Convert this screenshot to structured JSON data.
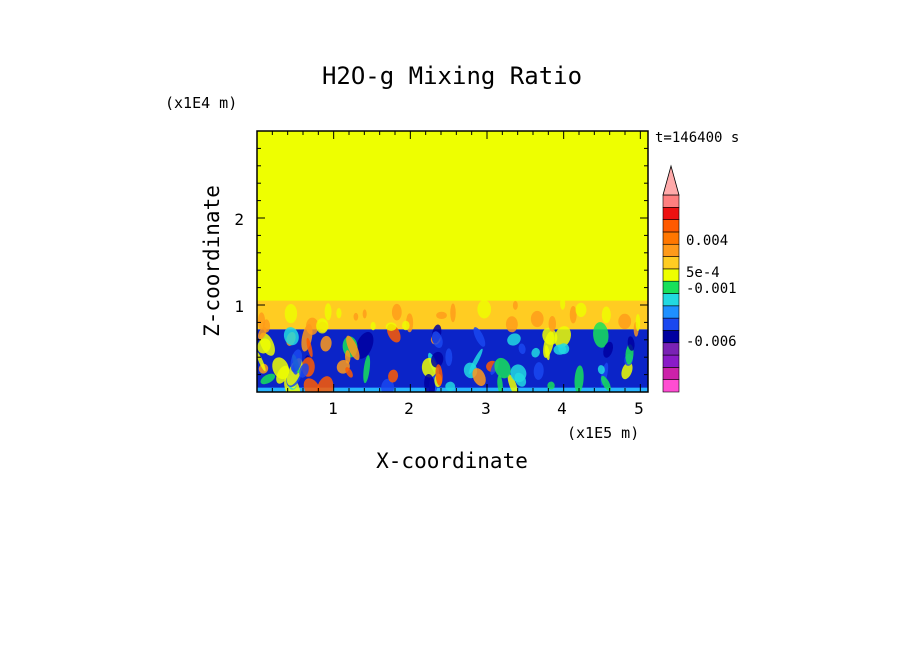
{
  "chart_data": {
    "type": "heatmap",
    "title": "H2O-g Mixing Ratio",
    "time_label": "t=146400 s",
    "xlabel": "X-coordinate",
    "ylabel": "Z-coordinate",
    "x_unit": "(x1E5 m)",
    "y_unit": "(x1E4 m)",
    "x_ticks": [
      "1",
      "2",
      "3",
      "4",
      "5"
    ],
    "y_ticks": [
      "1",
      "2"
    ],
    "x_range": [
      0,
      5.1
    ],
    "y_range": [
      0,
      3.0
    ],
    "field_layers": [
      {
        "z_from": 1.0,
        "z_to": 3.0,
        "color": "#eeff00"
      },
      {
        "z_from": 0.72,
        "z_to": 1.05,
        "color": "#ffcc22"
      },
      {
        "z_from": 0.0,
        "z_to": 0.72,
        "color": "#0b24c8"
      },
      {
        "z_from": 0.0,
        "z_to": 0.05,
        "color": "#27b3ff"
      }
    ],
    "colorbar": {
      "levels": [
        {
          "color": "#ff4dd2"
        },
        {
          "color": "#cc22aa"
        },
        {
          "color": "#8a1bc8"
        },
        {
          "color": "#7a22b5"
        },
        {
          "color": "#0000a0"
        },
        {
          "color": "#1a48f0"
        },
        {
          "color": "#1e90ff"
        },
        {
          "color": "#22d9e0"
        },
        {
          "color": "#18e05a"
        },
        {
          "color": "#eeff00"
        },
        {
          "color": "#ffcc22"
        },
        {
          "color": "#ff9a1a"
        },
        {
          "color": "#ff7700"
        },
        {
          "color": "#ff5a00"
        },
        {
          "color": "#ee1111"
        },
        {
          "color": "#ff7f7f"
        },
        {
          "color": "#ffaaaa"
        }
      ],
      "tick_labels": [
        "-0.006",
        "-0.001",
        "5e-4",
        "0.004"
      ]
    }
  }
}
